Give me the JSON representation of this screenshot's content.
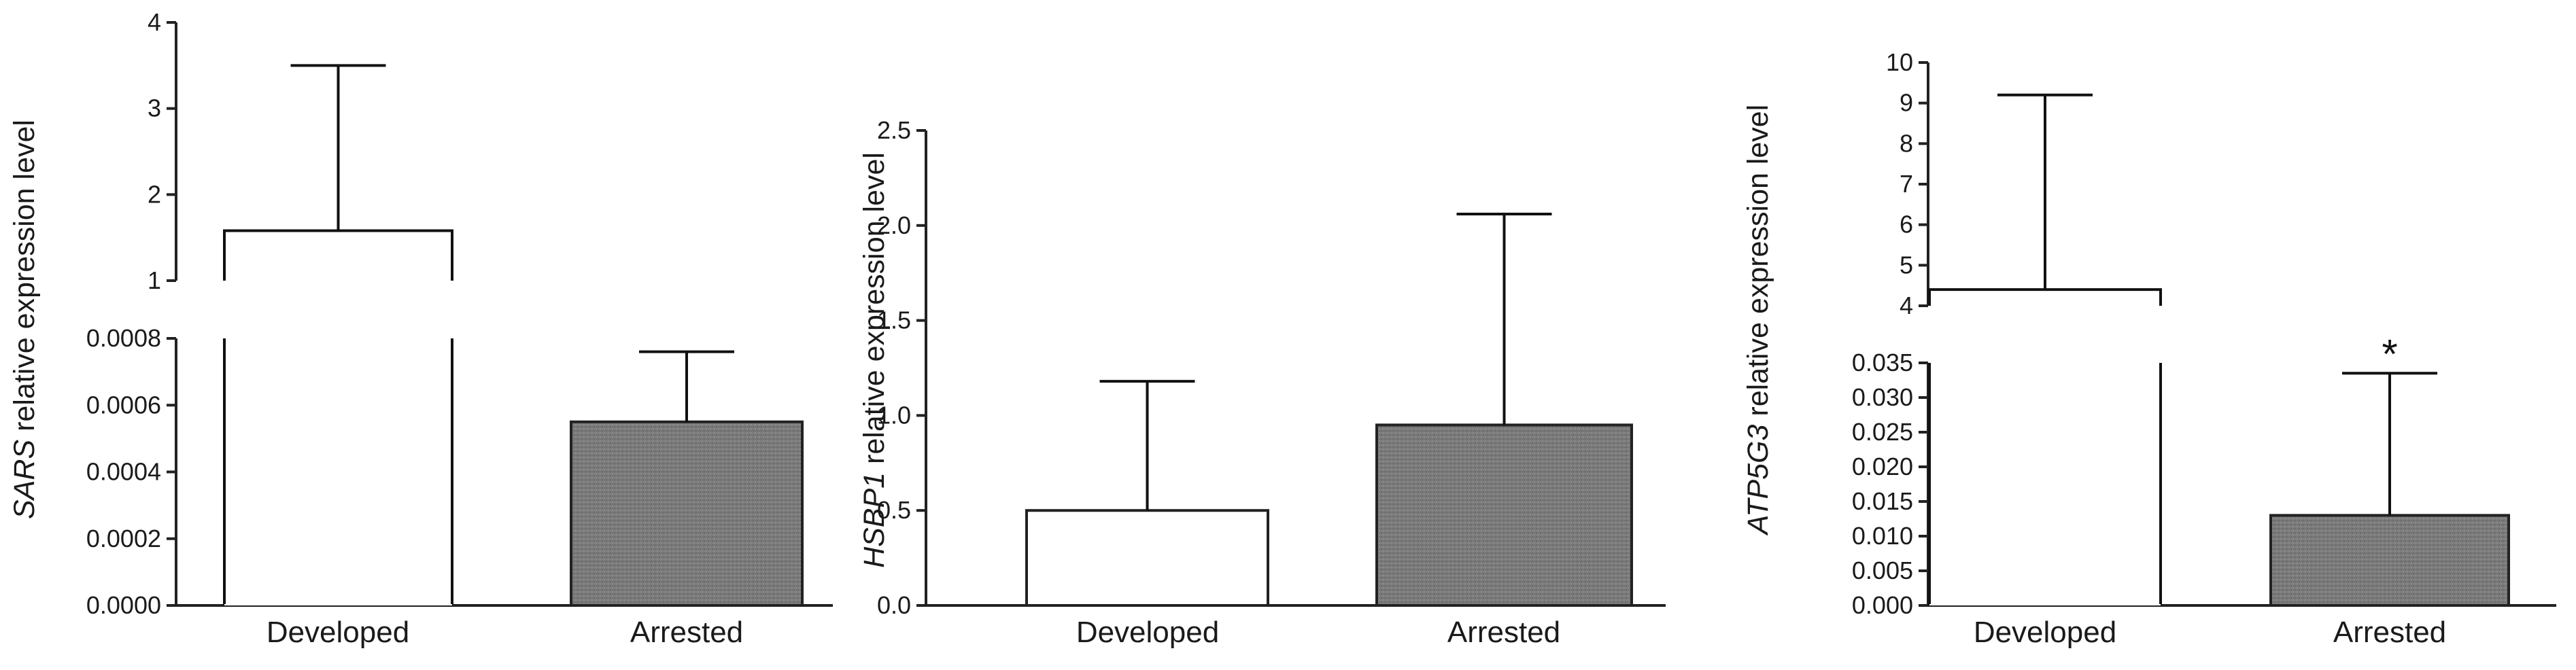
{
  "chart_data": [
    {
      "type": "bar",
      "gene": "SARS",
      "ylabel": "relative expression level",
      "categories": [
        "Developed",
        "Arrested"
      ],
      "values": [
        1.58,
        0.00055
      ],
      "error_upper": [
        3.5,
        0.00076
      ],
      "fill_colors": [
        "#ffffff",
        "#7d7d7d"
      ],
      "broken_axis": true,
      "segments": [
        {
          "ylim": [
            0,
            0.0008
          ],
          "ticks": [
            "0.0000",
            "0.0002",
            "0.0004",
            "0.0006",
            "0.0008"
          ],
          "tick_values": [
            0,
            0.0002,
            0.0004,
            0.0006,
            0.0008
          ]
        },
        {
          "ylim": [
            1,
            4
          ],
          "ticks": [
            "1",
            "2",
            "3",
            "4"
          ],
          "tick_values": [
            1,
            2,
            3,
            4
          ]
        }
      ],
      "significance": [
        "",
        ""
      ]
    },
    {
      "type": "bar",
      "gene": "HSBP1",
      "ylabel": "relative expression level",
      "categories": [
        "Developed",
        "Arrested"
      ],
      "values": [
        0.5,
        0.95
      ],
      "error_upper": [
        1.18,
        2.06
      ],
      "fill_colors": [
        "#ffffff",
        "#7d7d7d"
      ],
      "broken_axis": false,
      "ylim": [
        0,
        2.5
      ],
      "ticks": [
        "0.0",
        "0.5",
        "1.0",
        "1.5",
        "2.0",
        "2.5"
      ],
      "tick_values": [
        0,
        0.5,
        1.0,
        1.5,
        2.0,
        2.5
      ],
      "significance": [
        "",
        ""
      ]
    },
    {
      "type": "bar",
      "gene": "ATP5G3",
      "ylabel": "relative expression level",
      "categories": [
        "Developed",
        "Arrested"
      ],
      "values": [
        4.4,
        0.013
      ],
      "error_upper": [
        9.2,
        0.0335
      ],
      "fill_colors": [
        "#ffffff",
        "#7d7d7d"
      ],
      "broken_axis": true,
      "segments": [
        {
          "ylim": [
            0,
            0.035
          ],
          "ticks": [
            "0.000",
            "0.005",
            "0.010",
            "0.015",
            "0.020",
            "0.025",
            "0.030",
            "0.035"
          ],
          "tick_values": [
            0,
            0.005,
            0.01,
            0.015,
            0.02,
            0.025,
            0.03,
            0.035
          ]
        },
        {
          "ylim": [
            4,
            10
          ],
          "ticks": [
            "4",
            "5",
            "6",
            "7",
            "8",
            "9",
            "10"
          ],
          "tick_values": [
            4,
            5,
            6,
            7,
            8,
            9,
            10
          ]
        }
      ],
      "significance": [
        "",
        "*"
      ]
    }
  ]
}
